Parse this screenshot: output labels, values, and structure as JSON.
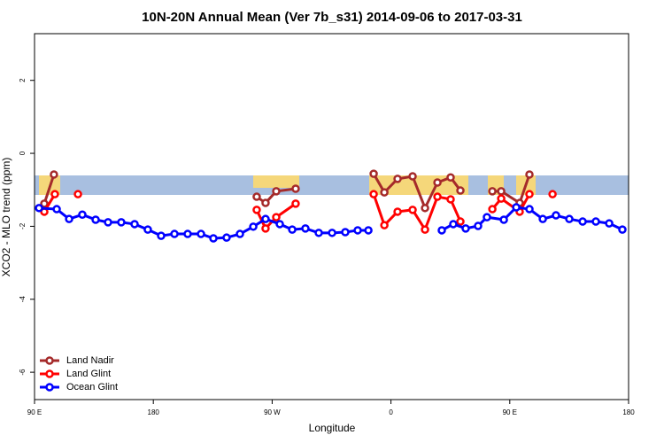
{
  "chart_data": {
    "type": "line",
    "title": "10N-20N Annual Mean (Ver 7b_s31)   2014-09-06 to 2017-03-31",
    "x_label": "Longitude",
    "y_label": "XCO2 - MLO trend (ppm)",
    "xlim": [
      90,
      540
    ],
    "ylim": [
      -6.75,
      3.28
    ],
    "xticks": [
      {
        "value": 90,
        "label": "90 E"
      },
      {
        "value": 180,
        "label": "180"
      },
      {
        "value": 270,
        "label": "90 W"
      },
      {
        "value": 360,
        "label": "0"
      },
      {
        "value": 450,
        "label": "90 E"
      },
      {
        "value": 540,
        "label": "180"
      }
    ],
    "yticks": [
      -6,
      -4,
      -2,
      0,
      2
    ],
    "legend": "bottom-left",
    "series": [
      {
        "name": "Land Nadir",
        "color": "#a52a2a",
        "x": [
          97.4,
          104.7,
          null,
          258.3,
          265.0,
          273.1,
          287.8,
          null,
          346.9,
          355.0,
          365.0,
          376.4,
          385.8,
          395.2,
          405.2,
          412.6,
          null,
          436.8,
          443.5,
          457.5,
          464.9
        ],
        "values": [
          -1.38,
          -0.58,
          null,
          -1.19,
          -1.36,
          -1.04,
          -0.97,
          null,
          -0.56,
          -1.07,
          -0.7,
          -0.63,
          -1.5,
          -0.8,
          -0.66,
          -1.02,
          null,
          -1.04,
          -1.04,
          -1.36,
          -0.58
        ]
      },
      {
        "name": "Land Glint",
        "color": "#ff0000",
        "x": [
          97.4,
          105.4,
          null,
          122.9,
          null,
          258.3,
          265.0,
          273.1,
          287.8,
          null,
          346.9,
          355.0,
          365.0,
          376.4,
          385.8,
          395.2,
          405.2,
          412.6,
          null,
          436.8,
          443.5,
          457.5,
          464.9,
          null,
          482.4
        ],
        "values": [
          -1.6,
          -1.12,
          null,
          -1.12,
          null,
          -1.55,
          -2.06,
          -1.75,
          -1.38,
          null,
          -1.12,
          -1.97,
          -1.6,
          -1.55,
          -2.09,
          -1.19,
          -1.26,
          -1.87,
          null,
          -1.53,
          -1.24,
          -1.6,
          -1.12,
          null,
          -1.12
        ]
      },
      {
        "name": "Ocean Glint",
        "color": "#0000ff",
        "x": [
          93.4,
          106.8,
          116.2,
          126.2,
          136.3,
          145.7,
          155.7,
          165.8,
          175.8,
          185.9,
          196.0,
          206.0,
          216.1,
          225.5,
          235.5,
          245.6,
          255.7,
          265.0,
          275.8,
          285.2,
          295.2,
          305.3,
          315.4,
          325.4,
          334.8,
          342.9,
          null,
          398.5,
          407.2,
          416.6,
          426.0,
          432.7,
          445.5,
          454.9,
          464.9,
          475.0,
          485.0,
          495.1,
          505.2,
          515.2,
          525.3,
          535.3
        ],
        "values": [
          -1.5,
          -1.53,
          -1.8,
          -1.68,
          -1.82,
          -1.89,
          -1.89,
          -1.94,
          -2.09,
          -2.26,
          -2.21,
          -2.21,
          -2.21,
          -2.33,
          -2.31,
          -2.21,
          -2.01,
          -1.8,
          -1.94,
          -2.09,
          -2.06,
          -2.18,
          -2.18,
          -2.16,
          -2.11,
          -2.11,
          null,
          -2.11,
          -1.94,
          -2.06,
          -1.99,
          -1.75,
          -1.82,
          -1.48,
          -1.53,
          -1.8,
          -1.7,
          -1.8,
          -1.87,
          -1.87,
          -1.92,
          -2.09
        ]
      }
    ]
  }
}
